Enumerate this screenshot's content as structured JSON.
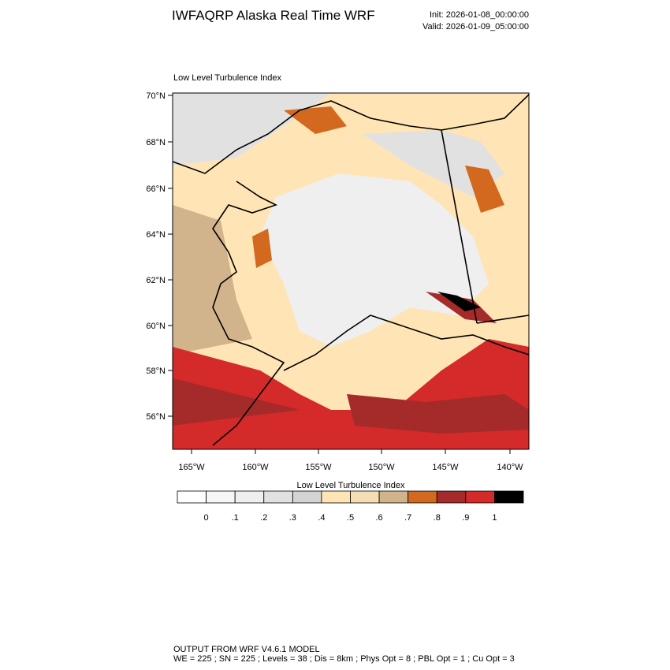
{
  "header": {
    "title": "IWFAQRP Alaska Real Time WRF",
    "init": "Init: 2026-01-08_00:00:00",
    "valid": "Valid: 2026-01-09_05:00:00"
  },
  "map": {
    "title": "Low Level Turbulence Index",
    "lat_labels": [
      "70°N",
      "68°N",
      "66°N",
      "64°N",
      "62°N",
      "60°N",
      "58°N",
      "56°N"
    ],
    "lon_labels": [
      "165°W",
      "160°W",
      "155°W",
      "150°W",
      "145°W",
      "140°W"
    ]
  },
  "colorbar": {
    "title": "Low Level Turbulence Index",
    "colors": [
      "#ffffff",
      "#f7f7f7",
      "#efefef",
      "#e1e1e1",
      "#d3d3d3",
      "#ffe4b5",
      "#f5deb3",
      "#d2b48c",
      "#d2691e",
      "#a52a2a",
      "#d42a2a",
      "#000000"
    ],
    "labels": [
      "0",
      ".1",
      ".2",
      ".3",
      ".4",
      ".5",
      ".6",
      ".7",
      ".8",
      ".9",
      "1"
    ]
  },
  "footer": {
    "line1": "OUTPUT FROM WRF V4.6.1 MODEL",
    "line2": "WE = 225 ; SN = 225 ; Levels = 38 ; Dis = 8km ; Phys Opt = 8 ; PBL Opt = 1 ; Cu Opt = 3"
  }
}
